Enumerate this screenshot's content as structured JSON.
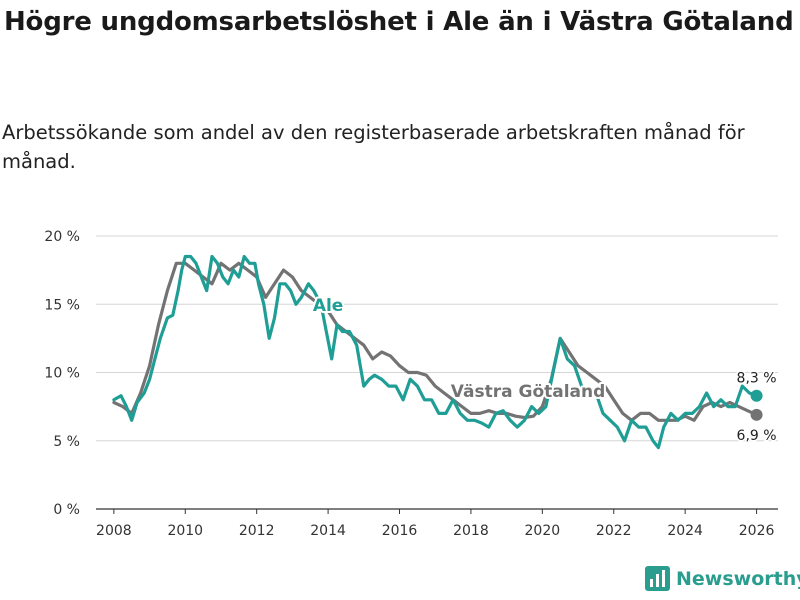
{
  "header": {
    "title": "Högre ungdomsarbetslöshet i Ale än i Västra Götaland",
    "subtitle": "Arbetssökande som andel av den registerbaserade arbetskraften månad för månad."
  },
  "brand": {
    "name": "Newsworthy",
    "icon": "bar-chart-icon",
    "color": "#2a9d8f"
  },
  "chart_data": {
    "type": "line",
    "title": "Högre ungdomsarbetslöshet i Ale än i Västra Götaland",
    "subtitle": "Arbetssökande som andel av den registerbaserade arbetskraften månad för månad.",
    "xlabel": "",
    "ylabel": "",
    "xlim": [
      2007.5,
      2026.6
    ],
    "ylim": [
      0,
      20
    ],
    "x_ticks": [
      2008,
      2010,
      2012,
      2014,
      2016,
      2018,
      2020,
      2022,
      2024,
      2026
    ],
    "x_tick_labels": [
      "2008",
      "2010",
      "2012",
      "2014",
      "2016",
      "2018",
      "2020",
      "2022",
      "2024",
      "2026"
    ],
    "y_ticks": [
      0,
      5,
      10,
      15,
      20
    ],
    "y_tick_labels": [
      "0 %",
      "5 %",
      "10 %",
      "15 %",
      "20 %"
    ],
    "grid": true,
    "series": [
      {
        "name": "Västra Götaland",
        "label": "Västra Götaland",
        "color": "#737373",
        "end_label": "6,9 %",
        "x": [
          2008.0,
          2008.25,
          2008.5,
          2008.75,
          2009.0,
          2009.25,
          2009.5,
          2009.75,
          2010.0,
          2010.25,
          2010.5,
          2010.75,
          2011.0,
          2011.25,
          2011.5,
          2011.75,
          2012.0,
          2012.25,
          2012.5,
          2012.75,
          2013.0,
          2013.25,
          2013.5,
          2013.75,
          2014.0,
          2014.25,
          2014.5,
          2014.75,
          2015.0,
          2015.25,
          2015.5,
          2015.75,
          2016.0,
          2016.25,
          2016.5,
          2016.75,
          2017.0,
          2017.25,
          2017.5,
          2017.75,
          2018.0,
          2018.25,
          2018.5,
          2018.75,
          2019.0,
          2019.25,
          2019.5,
          2019.75,
          2020.0,
          2020.25,
          2020.5,
          2020.75,
          2021.0,
          2021.25,
          2021.5,
          2021.75,
          2022.0,
          2022.25,
          2022.5,
          2022.75,
          2023.0,
          2023.25,
          2023.5,
          2023.75,
          2024.0,
          2024.25,
          2024.5,
          2024.75,
          2025.0,
          2025.25,
          2025.5,
          2025.75,
          2026.0
        ],
        "values": [
          7.8,
          7.5,
          7.0,
          8.5,
          10.5,
          13.5,
          16.0,
          18.0,
          18.0,
          17.5,
          17.0,
          16.5,
          18.0,
          17.5,
          18.0,
          17.5,
          17.0,
          15.5,
          16.5,
          17.5,
          17.0,
          16.0,
          15.5,
          15.0,
          14.5,
          13.5,
          13.0,
          12.5,
          12.0,
          11.0,
          11.5,
          11.2,
          10.5,
          10.0,
          10.0,
          9.8,
          9.0,
          8.5,
          8.0,
          7.5,
          7.0,
          7.0,
          7.2,
          7.0,
          7.0,
          6.8,
          6.7,
          6.8,
          7.5,
          9.5,
          12.5,
          11.5,
          10.5,
          10.0,
          9.5,
          9.0,
          8.0,
          7.0,
          6.5,
          7.0,
          7.0,
          6.5,
          6.5,
          6.5,
          6.8,
          6.5,
          7.5,
          7.8,
          7.5,
          7.8,
          7.5,
          7.2,
          6.9
        ]
      },
      {
        "name": "Ale",
        "label": "Ale",
        "color": "#1f9e96",
        "end_label": "8,3 %",
        "x": [
          2008.0,
          2008.2,
          2008.35,
          2008.5,
          2008.65,
          2008.85,
          2009.0,
          2009.15,
          2009.3,
          2009.5,
          2009.65,
          2009.8,
          2009.9,
          2010.0,
          2010.15,
          2010.3,
          2010.45,
          2010.6,
          2010.75,
          2010.9,
          2011.05,
          2011.2,
          2011.35,
          2011.5,
          2011.65,
          2011.8,
          2011.95,
          2012.05,
          2012.2,
          2012.35,
          2012.5,
          2012.65,
          2012.8,
          2012.95,
          2013.1,
          2013.25,
          2013.45,
          2013.6,
          2013.8,
          2013.95,
          2014.1,
          2014.25,
          2014.4,
          2014.6,
          2014.8,
          2015.0,
          2015.15,
          2015.3,
          2015.5,
          2015.7,
          2015.9,
          2016.1,
          2016.3,
          2016.5,
          2016.7,
          2016.9,
          2017.1,
          2017.3,
          2017.5,
          2017.7,
          2017.9,
          2018.1,
          2018.3,
          2018.5,
          2018.7,
          2018.9,
          2019.1,
          2019.3,
          2019.5,
          2019.7,
          2019.9,
          2020.1,
          2020.3,
          2020.5,
          2020.7,
          2020.9,
          2021.1,
          2021.3,
          2021.5,
          2021.7,
          2021.9,
          2022.1,
          2022.3,
          2022.5,
          2022.7,
          2022.9,
          2023.1,
          2023.25,
          2023.4,
          2023.6,
          2023.8,
          2024.0,
          2024.2,
          2024.4,
          2024.6,
          2024.8,
          2025.0,
          2025.2,
          2025.4,
          2025.6,
          2025.8,
          2026.0
        ],
        "values": [
          8.0,
          8.3,
          7.5,
          6.5,
          7.8,
          8.5,
          9.5,
          11.0,
          12.5,
          14.0,
          14.2,
          16.0,
          17.5,
          18.5,
          18.5,
          18.0,
          17.0,
          16.0,
          18.5,
          18.0,
          17.0,
          16.5,
          17.5,
          17.0,
          18.5,
          18.0,
          18.0,
          16.5,
          15.0,
          12.5,
          14.0,
          16.5,
          16.5,
          16.0,
          15.0,
          15.5,
          16.5,
          16.0,
          15.0,
          13.0,
          11.0,
          13.5,
          13.0,
          13.0,
          12.0,
          9.0,
          9.5,
          9.8,
          9.5,
          9.0,
          9.0,
          8.0,
          9.5,
          9.0,
          8.0,
          8.0,
          7.0,
          7.0,
          8.0,
          7.0,
          6.5,
          6.5,
          6.3,
          6.0,
          7.0,
          7.2,
          6.5,
          6.0,
          6.5,
          7.5,
          7.0,
          7.5,
          10.0,
          12.5,
          11.0,
          10.5,
          9.0,
          8.5,
          8.5,
          7.0,
          6.5,
          6.0,
          5.0,
          6.5,
          6.0,
          6.0,
          5.0,
          4.5,
          6.0,
          7.0,
          6.5,
          7.0,
          7.0,
          7.5,
          8.5,
          7.5,
          8.0,
          7.5,
          7.5,
          9.0,
          8.5,
          8.3
        ]
      }
    ],
    "annotations": [
      {
        "text": "Ale",
        "series": "Ale",
        "x": 2014.0,
        "y": 14.5
      },
      {
        "text": "Västra Götaland",
        "series": "Västra Götaland",
        "x": 2019.6,
        "y": 8.2
      }
    ]
  }
}
